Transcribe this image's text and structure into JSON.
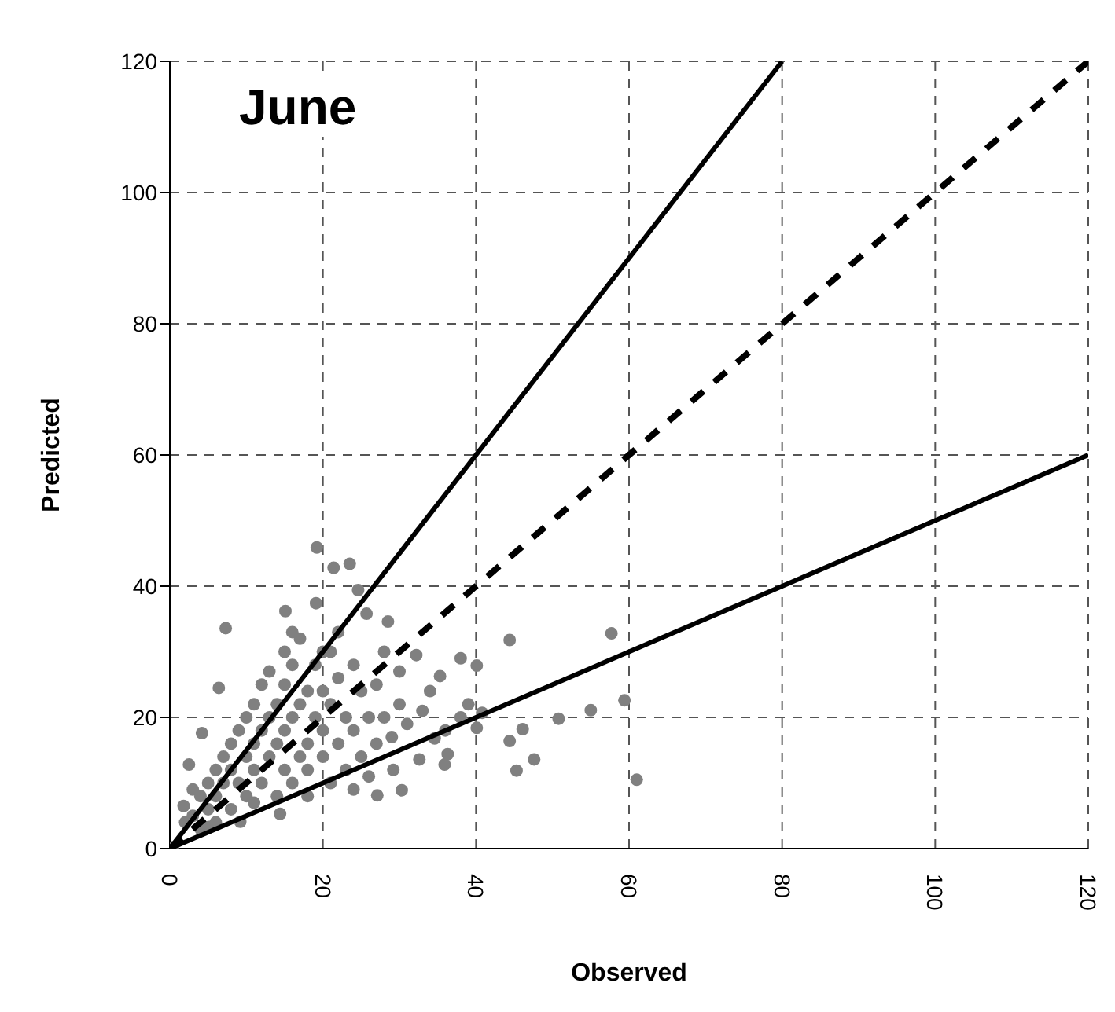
{
  "chart_data": {
    "type": "scatter",
    "title": "June",
    "xlabel": "Observed",
    "ylabel": "Predicted",
    "xlim": [
      0,
      120
    ],
    "ylim": [
      0,
      120
    ],
    "xticks": [
      0,
      20,
      40,
      60,
      80,
      100,
      120
    ],
    "yticks": [
      0,
      20,
      40,
      60,
      80,
      100,
      120
    ],
    "grid": true,
    "legend": false,
    "series": [
      {
        "color": "#808080",
        "marker": "circle",
        "x": [
          19.2,
          21.4,
          23.5,
          24.6,
          19.1,
          15.1,
          7.3,
          6.4,
          4.2,
          2.5,
          1.8,
          0.4,
          5.1,
          9.2,
          14.4,
          27.1,
          30.3,
          35.9,
          34.6,
          40.1,
          40.1,
          38,
          35.3,
          32.2,
          28.5,
          25.7,
          44.4,
          57.7,
          59.4,
          55,
          50.8,
          46.1,
          44.4,
          47.6,
          45.3,
          61,
          40.8,
          36.3,
          32.6,
          29.2,
          3,
          4,
          5,
          5,
          6,
          6,
          7,
          7,
          8,
          8,
          8,
          9,
          9,
          10,
          10,
          10,
          11,
          11,
          11,
          12,
          12,
          12,
          13,
          13,
          13,
          14,
          14,
          14,
          15,
          15,
          15,
          15,
          16,
          16,
          16,
          17,
          17,
          17,
          18,
          18,
          18,
          19,
          19,
          20,
          20,
          20,
          21,
          21,
          21,
          22,
          22,
          23,
          23,
          24,
          24,
          25,
          25,
          26,
          26,
          27,
          27,
          28,
          28,
          29,
          30,
          31,
          30,
          33,
          34,
          36,
          38,
          39,
          2,
          3,
          4,
          6,
          11,
          18,
          24,
          20,
          22,
          16
        ],
        "values": [
          45.9,
          42.8,
          43.4,
          39.4,
          37.4,
          36.2,
          33.6,
          24.5,
          17.6,
          12.8,
          6.5,
          0.2,
          3.3,
          4.1,
          5.3,
          8.1,
          8.9,
          12.8,
          16.8,
          18.4,
          27.9,
          29,
          26.3,
          29.5,
          34.6,
          35.8,
          31.8,
          32.8,
          22.6,
          21.1,
          19.8,
          18.2,
          16.4,
          13.6,
          11.9,
          10.5,
          20.7,
          14.4,
          13.6,
          12,
          5,
          8,
          10,
          6,
          12,
          8,
          14,
          10,
          6,
          16,
          12,
          18,
          10,
          8,
          14,
          20,
          12,
          22,
          16,
          10,
          18,
          25,
          14,
          20,
          27,
          8,
          16,
          22,
          12,
          18,
          25,
          30,
          10,
          20,
          28,
          14,
          22,
          32,
          16,
          24,
          12,
          20,
          28,
          14,
          18,
          24,
          10,
          22,
          30,
          16,
          26,
          12,
          20,
          18,
          28,
          14,
          24,
          20,
          11,
          16,
          25,
          20,
          30,
          17,
          22,
          19,
          27,
          21,
          24,
          18,
          20,
          22,
          4,
          9,
          3,
          4,
          7,
          8,
          9,
          30,
          33,
          33
        ]
      },
      {
        "type": "line",
        "color": "#000000",
        "marker": "none",
        "line_style": "solid",
        "x": [
          0,
          80
        ],
        "values": [
          0,
          120
        ]
      },
      {
        "type": "line",
        "color": "#000000",
        "marker": "none",
        "line_style": "dashed",
        "x": [
          0,
          120
        ],
        "values": [
          0,
          120
        ]
      },
      {
        "type": "line",
        "color": "#000000",
        "marker": "none",
        "line_style": "solid",
        "x": [
          0,
          120
        ],
        "values": [
          0,
          60
        ]
      }
    ]
  }
}
